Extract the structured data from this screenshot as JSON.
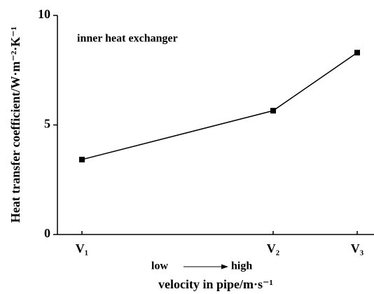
{
  "chart_data": {
    "type": "line",
    "y_label": "Heat transfer coefficient/W·m⁻²·K⁻¹",
    "x_label": "velocity in pipe/m·s⁻¹",
    "annotations": [
      "inner heat exchanger",
      "low",
      "high"
    ],
    "categories": [
      "V₁",
      "V₂",
      "V₃"
    ],
    "series": [
      {
        "name": "inner heat exchanger",
        "color": "#000000",
        "values": [
          3.42,
          5.65,
          8.3
        ]
      }
    ],
    "ylim": [
      0,
      10
    ],
    "yticks": [
      0,
      5,
      10
    ],
    "grid": false
  }
}
